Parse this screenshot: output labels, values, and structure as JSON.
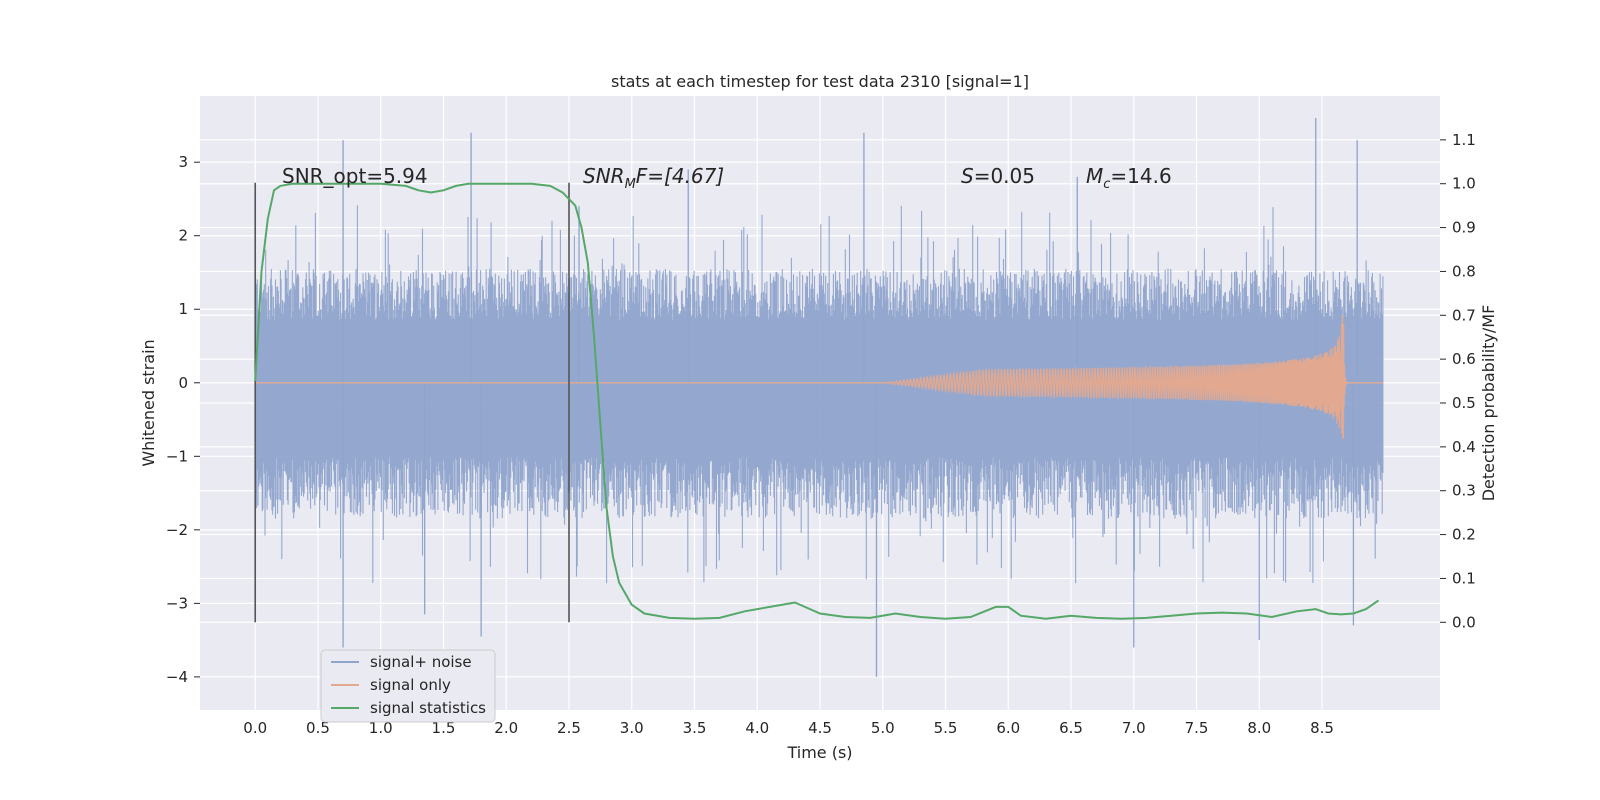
{
  "chart_data": {
    "type": "line",
    "title": "stats at each timestep for test data 2310 [signal=1]",
    "xlabel": "Time (s)",
    "ylabel_left": "Whitened strain",
    "ylabel_right": "Detection probability/MF",
    "xlim": [
      -0.44,
      9.44
    ],
    "ylim_left": [
      -4.45,
      3.9
    ],
    "ylim_right": [
      -0.2,
      1.2
    ],
    "x_ticks": [
      "0.0",
      "0.5",
      "1.0",
      "1.5",
      "2.0",
      "2.5",
      "3.0",
      "3.5",
      "4.0",
      "4.5",
      "5.0",
      "5.5",
      "6.0",
      "6.5",
      "7.0",
      "7.5",
      "8.0",
      "8.5"
    ],
    "y_ticks_left": [
      "3",
      "2",
      "1",
      "0",
      "−1",
      "−2",
      "−3",
      "−4"
    ],
    "y_ticks_right": [
      "1.1",
      "1.0",
      "0.9",
      "0.8",
      "0.7",
      "0.6",
      "0.5",
      "0.4",
      "0.3",
      "0.2",
      "0.1",
      "0.0"
    ],
    "grid": true,
    "legend_position": "lower-left",
    "series": [
      {
        "name": "signal+ noise",
        "color": "#8fa4cc",
        "axis": "left",
        "x_range": [
          0.0,
          8.99
        ],
        "bulk_range": [
          -1.85,
          1.55
        ],
        "peaks": [
          [
            0.7,
            3.3
          ],
          [
            1.72,
            3.4
          ],
          [
            4.85,
            3.4
          ],
          [
            8.45,
            3.6
          ],
          [
            8.78,
            3.3
          ],
          [
            3.45,
            2.9
          ],
          [
            2.58,
            2.4
          ],
          [
            6.55,
            2.8
          ]
        ],
        "troughs": [
          [
            0.7,
            -3.6
          ],
          [
            4.95,
            -4.0
          ],
          [
            7.0,
            -3.6
          ],
          [
            8.0,
            -3.5
          ],
          [
            1.8,
            -3.45
          ],
          [
            8.75,
            -3.3
          ],
          [
            1.35,
            -3.15
          ]
        ]
      },
      {
        "name": "signal only",
        "color": "#e2a890",
        "axis": "left",
        "x_range": [
          0.0,
          8.99
        ],
        "chirp_start": 5.0,
        "merger_time": 8.67,
        "peak_amplitude": 1.15
      },
      {
        "name": "signal statistics",
        "color": "#55a868",
        "axis": "right",
        "x": [
          0.0,
          0.05,
          0.1,
          0.15,
          0.2,
          0.3,
          0.4,
          0.5,
          0.6,
          0.8,
          1.0,
          1.2,
          1.3,
          1.4,
          1.5,
          1.6,
          1.7,
          1.8,
          2.0,
          2.2,
          2.35,
          2.45,
          2.55,
          2.6,
          2.65,
          2.7,
          2.75,
          2.8,
          2.85,
          2.9,
          3.0,
          3.1,
          3.3,
          3.5,
          3.7,
          3.9,
          4.1,
          4.3,
          4.5,
          4.7,
          4.9,
          5.1,
          5.3,
          5.5,
          5.7,
          5.9,
          6.0,
          6.1,
          6.3,
          6.5,
          6.7,
          6.9,
          7.1,
          7.3,
          7.5,
          7.7,
          7.9,
          8.1,
          8.3,
          8.45,
          8.55,
          8.65,
          8.75,
          8.85,
          8.95
        ],
        "y": [
          0.55,
          0.8,
          0.92,
          0.985,
          0.995,
          1.0,
          1.0,
          1.0,
          1.0,
          1.0,
          1.0,
          0.995,
          0.985,
          0.98,
          0.985,
          0.995,
          1.0,
          1.0,
          1.0,
          1.0,
          0.995,
          0.98,
          0.95,
          0.9,
          0.82,
          0.65,
          0.45,
          0.26,
          0.15,
          0.09,
          0.04,
          0.02,
          0.01,
          0.008,
          0.01,
          0.025,
          0.035,
          0.045,
          0.02,
          0.012,
          0.01,
          0.02,
          0.012,
          0.008,
          0.012,
          0.035,
          0.035,
          0.015,
          0.008,
          0.015,
          0.01,
          0.008,
          0.01,
          0.015,
          0.02,
          0.022,
          0.02,
          0.012,
          0.025,
          0.03,
          0.02,
          0.018,
          0.02,
          0.03,
          0.05
        ]
      }
    ],
    "vlines": [
      0.0,
      2.5
    ],
    "annotations": {
      "snr_opt": "SNR_opt=5.94",
      "snr_mf_main": "SNR",
      "snr_mf_sub": "M",
      "snr_mf_rest": "F=[4.67]",
      "s_main": "S",
      "s_rest": "=0.05",
      "mc_main": "M",
      "mc_sub": "c",
      "mc_rest": "=14.6"
    }
  }
}
